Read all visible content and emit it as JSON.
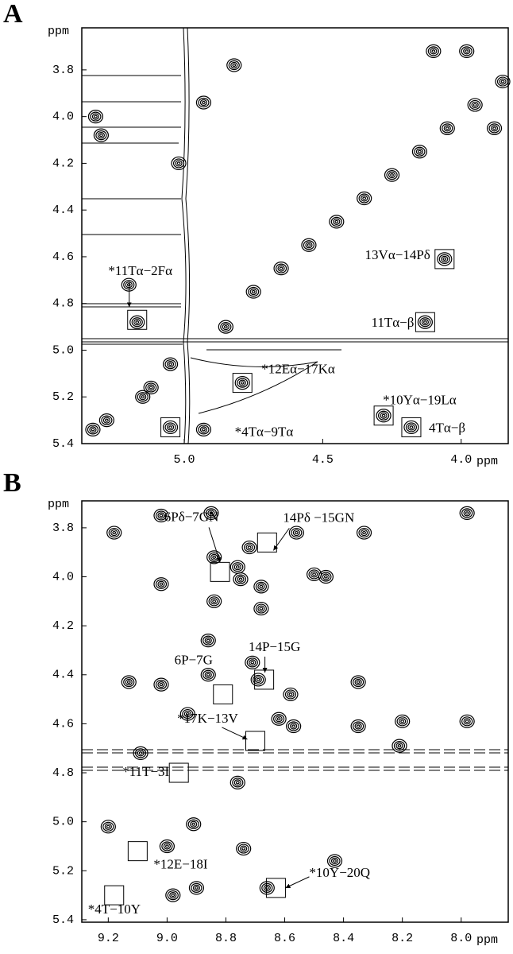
{
  "chart_data": [
    {
      "type": "contour",
      "panel": "A",
      "x_label": "ppm",
      "y_label": "ppm",
      "xlim": [
        5.37,
        3.83
      ],
      "ylim": [
        3.62,
        5.4
      ],
      "xticks": [
        {
          "value": 5,
          "label": "5.0"
        },
        4.5,
        {
          "value": 4,
          "label": "4.0"
        }
      ],
      "yticks": [
        3.8,
        {
          "value": 4,
          "label": "4.0"
        },
        4.2,
        4.4,
        4.6,
        4.8,
        {
          "value": 5,
          "label": "5.0"
        },
        5.2,
        5.4
      ],
      "peaks": {
        "x": [
          4.75,
          4.65,
          4.55,
          4.45,
          4.35,
          4.25,
          4.15,
          4.05,
          3.95,
          3.85,
          5.33,
          5.28,
          5.15,
          5.12,
          5.2,
          5.17,
          5.05,
          4.93,
          4.93,
          4.85,
          4.82,
          4.79,
          4.28,
          4.18,
          4.06,
          4.13,
          4.1,
          3.98,
          3.88,
          5.32,
          5.3,
          5.05,
          5.02
        ],
        "y": [
          4.75,
          4.65,
          4.55,
          4.45,
          4.35,
          4.25,
          4.15,
          4.05,
          3.95,
          3.85,
          5.34,
          5.3,
          5.2,
          5.16,
          4.72,
          4.88,
          5.33,
          5.34,
          3.94,
          4.9,
          3.78,
          5.14,
          5.28,
          5.33,
          4.61,
          4.88,
          3.72,
          3.72,
          4.05,
          4.0,
          4.08,
          5.06,
          4.2
        ]
      },
      "annotations": [
        {
          "text": "13Vα−14Pδ",
          "x": 4.06,
          "y": 4.61
        },
        {
          "text": "11Tα−β",
          "x": 4.13,
          "y": 4.88
        },
        {
          "text": "*11Tα−2Fα",
          "x": 5.17,
          "y": 4.87
        },
        {
          "text": "*12Eα−17Kα",
          "x": 4.79,
          "y": 5.14
        },
        {
          "text": "*10Yα−19Lα",
          "x": 4.28,
          "y": 5.28
        },
        {
          "text": "4Tα−β",
          "x": 4.18,
          "y": 5.33
        },
        {
          "text": "*4Tα−9Tα",
          "x": 5.05,
          "y": 5.33
        }
      ]
    },
    {
      "type": "contour",
      "panel": "B",
      "x_label": "ppm",
      "y_label": "ppm",
      "xlim": [
        9.29,
        7.84
      ],
      "ylim": [
        3.69,
        5.41
      ],
      "xticks": [
        9.2,
        {
          "value": 9,
          "label": "9.0"
        },
        8.8,
        8.6,
        8.4,
        8.2,
        {
          "value": 8,
          "label": "8.0"
        }
      ],
      "yticks": [
        3.8,
        {
          "value": 4,
          "label": "4.0"
        },
        4.2,
        4.4,
        4.6,
        4.8,
        {
          "value": 5,
          "label": "5.0"
        },
        5.2,
        5.4
      ],
      "peaks": {
        "x": [
          9.18,
          9.13,
          9.09,
          9.2,
          9.02,
          9.02,
          9.02,
          9.0,
          8.98,
          8.93,
          8.91,
          8.9,
          8.85,
          8.84,
          8.84,
          8.86,
          8.86,
          8.76,
          8.75,
          8.76,
          8.74,
          8.72,
          8.71,
          8.69,
          8.68,
          8.68,
          8.62,
          8.58,
          8.57,
          8.56,
          8.5,
          8.46,
          8.43,
          8.35,
          8.35,
          8.33,
          8.2,
          8.21,
          7.98,
          7.98,
          8.66
        ],
        "y": [
          3.82,
          4.43,
          4.72,
          5.02,
          3.75,
          4.03,
          4.44,
          5.1,
          5.3,
          4.56,
          5.01,
          5.27,
          3.74,
          3.92,
          4.1,
          4.26,
          4.4,
          3.96,
          4.01,
          4.84,
          5.11,
          3.88,
          4.35,
          4.42,
          4.13,
          4.04,
          4.58,
          4.48,
          4.61,
          3.82,
          3.99,
          4.0,
          5.16,
          4.43,
          4.61,
          3.82,
          4.59,
          4.69,
          3.74,
          4.59,
          5.27
        ]
      },
      "annotations": [
        {
          "text": "6Pδ−7GN",
          "x": 8.82,
          "y": 3.98
        },
        {
          "text": "14Pδ −15GN",
          "x": 8.66,
          "y": 3.86
        },
        {
          "text": "6P−7G",
          "x": 8.81,
          "y": 4.48
        },
        {
          "text": "14P−15G",
          "x": 8.67,
          "y": 4.42
        },
        {
          "text": "*17K−13V",
          "x": 8.7,
          "y": 4.67
        },
        {
          "text": "*11T−3I",
          "x": 8.96,
          "y": 4.8
        },
        {
          "text": "*12E−18I",
          "x": 9.1,
          "y": 5.12
        },
        {
          "text": "*10Y−20Q",
          "x": 8.63,
          "y": 5.27
        },
        {
          "text": "*4T−10Y",
          "x": 9.18,
          "y": 5.3
        }
      ]
    }
  ]
}
